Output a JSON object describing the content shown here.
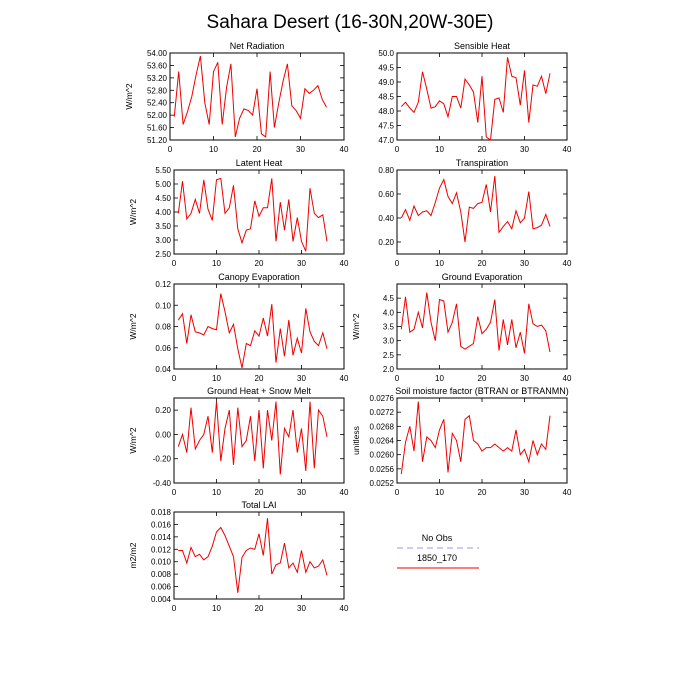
{
  "figure": {
    "title": "Sahara Desert (16-30N,20W-30E)"
  },
  "legend": {
    "entries": [
      {
        "label": "No Obs",
        "color": "#9999ee",
        "style": "dashed"
      },
      {
        "label": "1850_170",
        "color": "#ee0000",
        "style": "solid"
      }
    ]
  },
  "chart_data": [
    {
      "type": "line",
      "title": "Net Radiation",
      "ylabel": "W/m^2",
      "xlim": [
        0,
        40
      ],
      "ylim": [
        51.2,
        54.0
      ],
      "xticks": [
        "0",
        "10",
        "20",
        "30",
        "40"
      ],
      "yticks": [
        "51.20",
        "51.60",
        "52.00",
        "52.40",
        "52.80",
        "53.20",
        "53.60",
        "54.00"
      ],
      "series": [
        {
          "color": "#ee0000",
          "x": [
            1,
            2,
            3,
            4,
            5,
            6,
            7,
            8,
            9,
            10,
            11,
            12,
            13,
            14,
            15,
            16,
            17,
            18,
            19,
            20,
            21,
            22,
            23,
            24,
            25,
            26,
            27,
            28,
            29,
            30,
            31,
            32,
            33,
            34,
            35,
            36
          ],
          "y": [
            51.95,
            53.4,
            51.7,
            52.1,
            52.6,
            53.3,
            53.9,
            52.4,
            51.7,
            53.4,
            53.7,
            51.7,
            52.9,
            53.65,
            51.3,
            51.9,
            52.2,
            52.15,
            52.0,
            52.85,
            51.4,
            51.3,
            53.4,
            51.6,
            52.4,
            53.1,
            53.65,
            52.3,
            52.15,
            51.9,
            52.85,
            52.7,
            52.8,
            52.95,
            52.5,
            52.25
          ]
        }
      ]
    },
    {
      "type": "line",
      "title": "Sensible Heat",
      "ylabel": "",
      "xlim": [
        0,
        40
      ],
      "ylim": [
        47.0,
        50.0
      ],
      "xticks": [
        "0",
        "10",
        "20",
        "30",
        "40"
      ],
      "yticks": [
        "47.0",
        "47.5",
        "48.0",
        "48.5",
        "49.0",
        "49.5",
        "50.0"
      ],
      "series": [
        {
          "color": "#ee0000",
          "x": [
            1,
            2,
            3,
            4,
            5,
            6,
            7,
            8,
            9,
            10,
            11,
            12,
            13,
            14,
            15,
            16,
            17,
            18,
            19,
            20,
            21,
            22,
            23,
            24,
            25,
            26,
            27,
            28,
            29,
            30,
            31,
            32,
            33,
            34,
            35,
            36
          ],
          "y": [
            48.15,
            48.3,
            48.1,
            47.95,
            48.3,
            49.35,
            48.75,
            48.1,
            48.15,
            48.35,
            48.25,
            47.8,
            48.5,
            48.5,
            48.1,
            49.1,
            48.9,
            48.65,
            47.6,
            49.2,
            47.1,
            47.0,
            48.4,
            48.45,
            47.95,
            49.85,
            49.2,
            49.15,
            48.2,
            49.4,
            47.6,
            48.9,
            48.85,
            49.2,
            48.6,
            49.3
          ]
        }
      ]
    },
    {
      "type": "line",
      "title": "Latent Heat",
      "ylabel": "W/m^2",
      "xlim": [
        0,
        40
      ],
      "ylim": [
        2.5,
        5.5
      ],
      "xticks": [
        "0",
        "10",
        "20",
        "30",
        "40"
      ],
      "yticks": [
        "2.50",
        "3.00",
        "3.50",
        "4.00",
        "4.50",
        "5.00",
        "5.50"
      ],
      "series": [
        {
          "color": "#ee0000",
          "x": [
            1,
            2,
            3,
            4,
            5,
            6,
            7,
            8,
            9,
            10,
            11,
            12,
            13,
            14,
            15,
            16,
            17,
            18,
            19,
            20,
            21,
            22,
            23,
            24,
            25,
            26,
            27,
            28,
            29,
            30,
            31,
            32,
            33,
            34,
            35,
            36
          ],
          "y": [
            3.95,
            5.1,
            3.75,
            3.95,
            4.45,
            3.95,
            5.15,
            4.1,
            3.7,
            5.15,
            5.2,
            3.95,
            4.15,
            4.95,
            3.4,
            2.9,
            3.35,
            3.4,
            4.4,
            3.85,
            4.15,
            4.15,
            5.2,
            2.95,
            4.35,
            3.35,
            4.45,
            2.95,
            3.8,
            2.95,
            2.6,
            4.85,
            3.95,
            3.8,
            3.9,
            2.95
          ]
        }
      ]
    },
    {
      "type": "line",
      "title": "Transpiration",
      "ylabel": "",
      "xlim": [
        0,
        40
      ],
      "ylim": [
        0.1,
        0.8
      ],
      "xticks": [
        "0",
        "10",
        "20",
        "30",
        "40"
      ],
      "yticks": [
        "0.20",
        "0.40",
        "0.60",
        "0.80"
      ],
      "series": [
        {
          "color": "#ee0000",
          "x": [
            1,
            2,
            3,
            4,
            5,
            6,
            7,
            8,
            9,
            10,
            11,
            12,
            13,
            14,
            15,
            16,
            17,
            18,
            19,
            20,
            21,
            22,
            23,
            24,
            25,
            26,
            27,
            28,
            29,
            30,
            31,
            32,
            33,
            34,
            35,
            36
          ],
          "y": [
            0.4,
            0.47,
            0.38,
            0.5,
            0.42,
            0.45,
            0.46,
            0.42,
            0.53,
            0.65,
            0.72,
            0.58,
            0.52,
            0.61,
            0.45,
            0.2,
            0.49,
            0.48,
            0.52,
            0.53,
            0.68,
            0.45,
            0.75,
            0.28,
            0.33,
            0.37,
            0.31,
            0.46,
            0.36,
            0.4,
            0.62,
            0.31,
            0.32,
            0.34,
            0.43,
            0.33
          ]
        }
      ]
    },
    {
      "type": "line",
      "title": "Canopy Evaporation",
      "ylabel": "W/m^2",
      "xlim": [
        0,
        40
      ],
      "ylim": [
        0.04,
        0.12
      ],
      "xticks": [
        "0",
        "10",
        "20",
        "30",
        "40"
      ],
      "yticks": [
        "0.04",
        "0.06",
        "0.08",
        "0.10",
        "0.12"
      ],
      "series": [
        {
          "color": "#ee0000",
          "x": [
            1,
            2,
            3,
            4,
            5,
            6,
            7,
            8,
            9,
            10,
            11,
            12,
            13,
            14,
            15,
            16,
            17,
            18,
            19,
            20,
            21,
            22,
            23,
            24,
            25,
            26,
            27,
            28,
            29,
            30,
            31,
            32,
            33,
            34,
            35,
            36
          ],
          "y": [
            0.086,
            0.092,
            0.064,
            0.091,
            0.075,
            0.074,
            0.072,
            0.08,
            0.078,
            0.077,
            0.111,
            0.094,
            0.074,
            0.082,
            0.059,
            0.041,
            0.064,
            0.062,
            0.076,
            0.071,
            0.088,
            0.071,
            0.101,
            0.046,
            0.078,
            0.052,
            0.086,
            0.053,
            0.069,
            0.055,
            0.097,
            0.075,
            0.066,
            0.062,
            0.074,
            0.059
          ]
        }
      ]
    },
    {
      "type": "line",
      "title": "Ground Evaporation",
      "ylabel": "W/m^2",
      "xlim": [
        0,
        40
      ],
      "ylim": [
        2.0,
        5.0
      ],
      "xticks": [
        "0",
        "10",
        "20",
        "30",
        "40"
      ],
      "yticks": [
        "2.0",
        "2.5",
        "3.0",
        "3.5",
        "4.0",
        "4.5"
      ],
      "series": [
        {
          "color": "#ee0000",
          "x": [
            1,
            2,
            3,
            4,
            5,
            6,
            7,
            8,
            9,
            10,
            11,
            12,
            13,
            14,
            15,
            16,
            17,
            18,
            19,
            20,
            21,
            22,
            23,
            24,
            25,
            26,
            27,
            28,
            29,
            30,
            31,
            32,
            33,
            34,
            35,
            36
          ],
          "y": [
            3.4,
            4.55,
            3.3,
            3.4,
            4.0,
            3.45,
            4.7,
            3.65,
            3.0,
            4.45,
            4.4,
            3.3,
            3.65,
            4.3,
            2.8,
            2.7,
            2.8,
            2.9,
            3.85,
            3.25,
            3.4,
            3.65,
            4.45,
            2.65,
            3.75,
            2.85,
            3.75,
            2.75,
            3.3,
            2.55,
            4.3,
            3.6,
            3.5,
            3.55,
            3.35,
            2.6
          ]
        }
      ]
    },
    {
      "type": "line",
      "title": "Ground Heat + Snow Melt",
      "ylabel": "W/m^2",
      "xlim": [
        0,
        40
      ],
      "ylim": [
        -0.4,
        0.3
      ],
      "xticks": [
        "0",
        "10",
        "20",
        "30",
        "40"
      ],
      "yticks": [
        "-0.40",
        "-0.20",
        "0.00",
        "0.20"
      ],
      "series": [
        {
          "color": "#ee0000",
          "x": [
            1,
            2,
            3,
            4,
            5,
            6,
            7,
            8,
            9,
            10,
            11,
            12,
            13,
            14,
            15,
            16,
            17,
            18,
            19,
            20,
            21,
            22,
            23,
            24,
            25,
            26,
            27,
            28,
            29,
            30,
            31,
            32,
            33,
            34,
            35,
            36
          ],
          "y": [
            -0.1,
            0.0,
            -0.15,
            0.22,
            -0.12,
            -0.05,
            0.0,
            0.15,
            -0.15,
            0.27,
            -0.22,
            0.05,
            0.2,
            -0.25,
            0.22,
            -0.1,
            -0.05,
            0.15,
            -0.22,
            0.2,
            -0.28,
            0.2,
            -0.05,
            0.27,
            -0.33,
            0.05,
            -0.02,
            0.2,
            -0.15,
            0.05,
            -0.3,
            0.27,
            -0.28,
            0.2,
            0.15,
            -0.02
          ]
        }
      ]
    },
    {
      "type": "line",
      "title": "Soil moisture factor (BTRAN or BTRANMN)",
      "ylabel": "unitless",
      "xlim": [
        0,
        40
      ],
      "ylim": [
        0.0252,
        0.0276
      ],
      "xticks": [
        "0",
        "10",
        "20",
        "30",
        "40"
      ],
      "yticks": [
        "0.0252",
        "0.0256",
        "0.0260",
        "0.0264",
        "0.0268",
        "0.0272",
        "0.0276"
      ],
      "series": [
        {
          "color": "#ee0000",
          "x": [
            1,
            2,
            3,
            4,
            5,
            6,
            7,
            8,
            9,
            10,
            11,
            12,
            13,
            14,
            15,
            16,
            17,
            18,
            19,
            20,
            21,
            22,
            23,
            24,
            25,
            26,
            27,
            28,
            29,
            30,
            31,
            32,
            33,
            34,
            35,
            36
          ],
          "y": [
            0.02545,
            0.02635,
            0.0268,
            0.0261,
            0.0275,
            0.0258,
            0.0265,
            0.0264,
            0.0262,
            0.0267,
            0.027,
            0.0255,
            0.0266,
            0.0264,
            0.0258,
            0.027,
            0.0271,
            0.0264,
            0.0263,
            0.0261,
            0.0262,
            0.0262,
            0.0263,
            0.0262,
            0.0261,
            0.0262,
            0.0261,
            0.0267,
            0.026,
            0.02615,
            0.0258,
            0.0264,
            0.026,
            0.0263,
            0.02615,
            0.0271
          ]
        }
      ]
    },
    {
      "type": "line",
      "title": "Total LAI",
      "ylabel": "m2/m2",
      "xlim": [
        0,
        40
      ],
      "ylim": [
        0.004,
        0.018
      ],
      "xticks": [
        "0",
        "10",
        "20",
        "30",
        "40"
      ],
      "yticks": [
        "0.004",
        "0.006",
        "0.008",
        "0.010",
        "0.012",
        "0.014",
        "0.016",
        "0.018"
      ],
      "series": [
        {
          "color": "#ee0000",
          "x": [
            1,
            2,
            3,
            4,
            5,
            6,
            7,
            8,
            9,
            10,
            11,
            12,
            13,
            14,
            15,
            16,
            17,
            18,
            19,
            20,
            21,
            22,
            23,
            24,
            25,
            26,
            27,
            28,
            29,
            30,
            31,
            32,
            33,
            34,
            35,
            36
          ],
          "y": [
            0.0118,
            0.0118,
            0.0098,
            0.0123,
            0.0108,
            0.0112,
            0.0103,
            0.0108,
            0.0125,
            0.0148,
            0.0155,
            0.0142,
            0.0125,
            0.0108,
            0.005,
            0.0107,
            0.0118,
            0.0122,
            0.012,
            0.0145,
            0.011,
            0.017,
            0.008,
            0.0095,
            0.0098,
            0.013,
            0.009,
            0.0098,
            0.0083,
            0.0118,
            0.0083,
            0.01,
            0.009,
            0.0093,
            0.0103,
            0.0078
          ]
        }
      ]
    }
  ]
}
